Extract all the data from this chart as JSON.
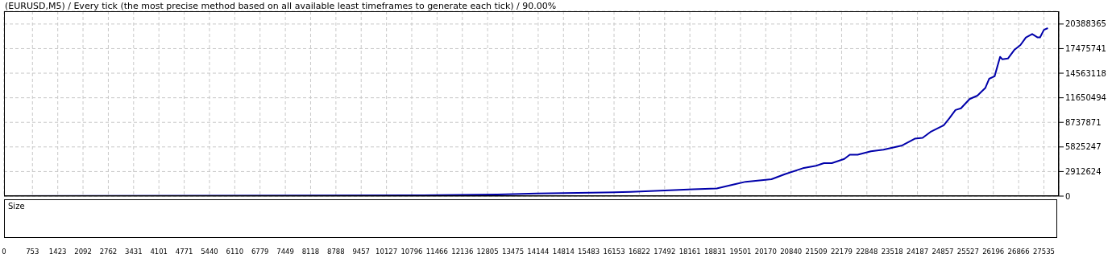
{
  "chart_data": {
    "type": "line",
    "title": "(EURUSD,M5) / Every tick (the most precise method based on all available least timeframes to generate each tick) / 90.00%",
    "annotations": [
      "Size"
    ],
    "series": [
      {
        "color": "#0000aa",
        "x": [
          0,
          11097,
          13067,
          14103,
          15554,
          16591,
          17627,
          18249,
          18871,
          19348,
          19638,
          20322,
          20675,
          21151,
          21504,
          21711,
          21919,
          22250,
          22395,
          22603,
          22955,
          23287,
          23784,
          24116,
          24323,
          24531,
          24883,
          25028,
          25194,
          25339,
          25567,
          25774,
          25982,
          26085,
          26230,
          26375,
          26437,
          26582,
          26748,
          26914,
          27059,
          27225,
          27370,
          27433,
          27536,
          27640
        ],
        "values": [
          0,
          100000,
          200000,
          300000,
          400000,
          500000,
          700000,
          800000,
          900000,
          1400000,
          1700000,
          2000000,
          2600000,
          3300000,
          3600000,
          3900000,
          3900000,
          4400000,
          4900000,
          4900000,
          5300000,
          5500000,
          6000000,
          6800000,
          6900000,
          7600000,
          8400000,
          9200000,
          10200000,
          10400000,
          11500000,
          11900000,
          12800000,
          13900000,
          14200000,
          16500000,
          16200000,
          16300000,
          17300000,
          17900000,
          18800000,
          19200000,
          18800000,
          18800000,
          19700000,
          19900000
        ]
      }
    ],
    "xlim": [
      0,
      27930
    ],
    "xticks": [
      0,
      753,
      1423,
      2092,
      2762,
      3431,
      4101,
      4771,
      5440,
      6110,
      6779,
      7449,
      8118,
      8788,
      9457,
      10127,
      10796,
      11466,
      12136,
      12805,
      13475,
      14144,
      14814,
      15483,
      16153,
      16822,
      17492,
      18161,
      18831,
      19501,
      20170,
      20840,
      21509,
      22179,
      22848,
      23518,
      24187,
      24857,
      25527,
      26196,
      26866,
      27535
    ],
    "ylim": [
      0,
      21900000
    ],
    "yticks": [
      0,
      2912624,
      5825247,
      8737871,
      11650494,
      14563118,
      17475741,
      20388365
    ],
    "grid": true,
    "marker": "none",
    "line_style": "solid"
  }
}
